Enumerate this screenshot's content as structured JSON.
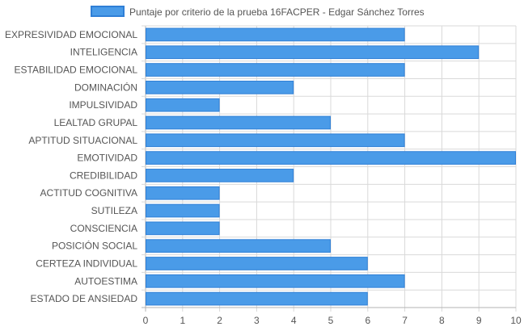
{
  "chart_data": {
    "type": "bar",
    "orientation": "horizontal",
    "categories": [
      "EXPRESIVIDAD EMOCIONAL",
      "INTELIGENCIA",
      "ESTABILIDAD EMOCIONAL",
      "DOMINACIÓN",
      "IMPULSIVIDAD",
      "LEALTAD GRUPAL",
      "APTITUD SITUACIONAL",
      "EMOTIVIDAD",
      "CREDIBILIDAD",
      "ACTITUD COGNITIVA",
      "SUTILEZA",
      "CONSCIENCIA",
      "POSICIÓN SOCIAL",
      "CERTEZA INDIVIDUAL",
      "AUTOESTIMA",
      "ESTADO DE ANSIEDAD"
    ],
    "series": [
      {
        "name": "Puntaje por criterio de la prueba 16FACPER - Edgar Sánchez Torres",
        "values": [
          7,
          9,
          7,
          4,
          2,
          5,
          7,
          10,
          4,
          2,
          2,
          2,
          5,
          6,
          7,
          6
        ]
      }
    ],
    "xlim": [
      0,
      10
    ],
    "xticks": [
      "0",
      "1",
      "2",
      "3",
      "4",
      "5",
      "6",
      "7",
      "8",
      "9",
      "10"
    ],
    "grid": true,
    "legend_position": "top",
    "colors": {
      "bar_fill": "#4a9be8",
      "bar_stroke": "#2f7fd6",
      "grid": "#d9d9d9",
      "axis": "#b3b3b3",
      "text": "#555555"
    }
  }
}
